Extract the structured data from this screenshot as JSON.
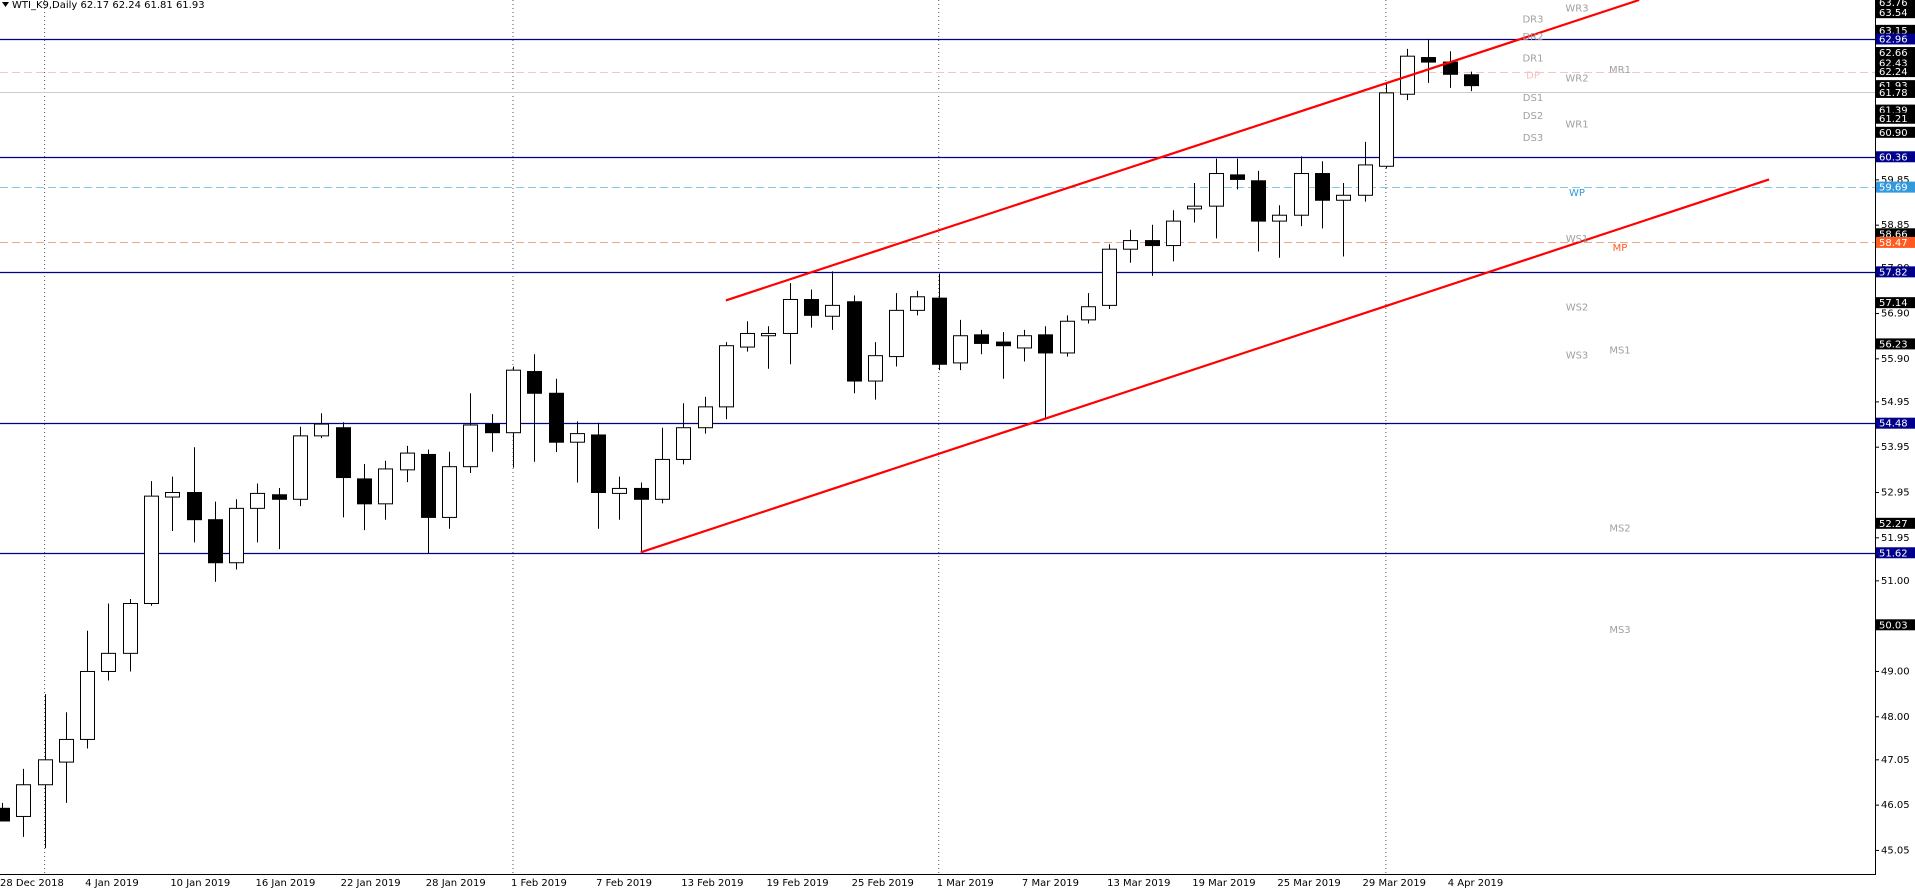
{
  "chart_data": {
    "type": "candlestick",
    "title": "WTI_K9,Daily  62.17 62.24 61.81 61.93",
    "categories": [
      "28 Dec 2018",
      null,
      null,
      null,
      "4 Jan 2019",
      null,
      null,
      null,
      "10 Jan 2019",
      null,
      null,
      null,
      "16 Jan 2019",
      null,
      null,
      null,
      "22 Jan 2019",
      null,
      null,
      null,
      "28 Jan 2019",
      null,
      null,
      null,
      "1 Feb 2019",
      null,
      null,
      null,
      "7 Feb 2019",
      null,
      null,
      null,
      "13 Feb 2019",
      null,
      null,
      null,
      "19 Feb 2019",
      null,
      null,
      null,
      "25 Feb 2019",
      null,
      null,
      null,
      "1 Mar 2019",
      null,
      null,
      null,
      "7 Mar 2019",
      null,
      null,
      null,
      "13 Mar 2019",
      null,
      null,
      null,
      "19 Mar 2019",
      null,
      null,
      null,
      "25 Mar 2019",
      null,
      null,
      null,
      "29 Mar 2019",
      null,
      null,
      null,
      "4 Apr 2019",
      null
    ],
    "open": [
      45.98,
      45.8,
      46.5,
      47.0,
      47.5,
      49.0,
      49.4,
      50.5,
      52.85,
      52.95,
      52.35,
      51.4,
      52.6,
      52.9,
      52.8,
      54.2,
      54.38,
      53.25,
      52.7,
      53.45,
      53.79,
      52.4,
      53.52,
      54.46,
      54.27,
      55.62,
      55.14,
      54.06,
      54.22,
      52.93,
      53.04,
      52.8,
      53.68,
      54.38,
      54.84,
      56.16,
      56.41,
      56.46,
      57.21,
      56.84,
      57.16,
      55.41,
      55.95,
      56.97,
      57.24,
      55.81,
      56.43,
      56.27,
      56.14,
      56.43,
      56.03,
      56.76,
      57.08,
      58.32,
      58.51,
      58.4,
      59.21,
      59.27,
      59.96,
      59.83,
      58.94,
      59.07,
      59.99,
      59.4,
      59.51,
      60.15,
      61.74,
      62.55,
      62.45,
      62.17
    ],
    "high": [
      46.1,
      46.85,
      48.5,
      48.1,
      49.9,
      50.5,
      50.6,
      53.2,
      53.3,
      53.95,
      52.75,
      52.8,
      53.15,
      53.05,
      54.4,
      54.7,
      54.5,
      53.58,
      53.65,
      53.98,
      53.9,
      53.85,
      55.14,
      54.68,
      55.73,
      56.0,
      55.46,
      54.52,
      54.49,
      53.3,
      53.17,
      54.38,
      54.92,
      55.06,
      56.27,
      56.73,
      56.62,
      57.57,
      57.43,
      57.83,
      57.3,
      56.27,
      57.35,
      57.4,
      57.78,
      56.76,
      56.54,
      56.49,
      56.54,
      56.62,
      56.86,
      57.35,
      58.43,
      58.75,
      58.86,
      59.18,
      59.78,
      60.32,
      60.32,
      60.05,
      59.29,
      60.37,
      60.26,
      59.78,
      60.69,
      61.99,
      62.74,
      62.96,
      62.69,
      62.24
    ],
    "low": [
      45.7,
      45.35,
      45.1,
      46.1,
      47.3,
      48.8,
      49.0,
      50.45,
      52.1,
      51.85,
      50.98,
      51.25,
      51.85,
      51.7,
      52.65,
      54.15,
      52.4,
      52.12,
      52.35,
      53.18,
      51.6,
      52.15,
      53.38,
      53.85,
      53.5,
      53.63,
      53.84,
      53.17,
      52.15,
      52.35,
      51.63,
      52.71,
      53.57,
      54.25,
      54.57,
      56.06,
      55.68,
      55.78,
      56.59,
      56.54,
      55.14,
      55.0,
      55.73,
      56.86,
      55.65,
      55.65,
      56.0,
      55.46,
      55.84,
      54.57,
      55.95,
      56.68,
      57.0,
      58.02,
      57.73,
      58.05,
      58.91,
      58.56,
      59.64,
      58.27,
      58.13,
      58.83,
      58.78,
      58.16,
      59.37,
      60.1,
      61.61,
      61.99,
      61.88,
      61.81
    ],
    "close": [
      45.7,
      46.5,
      47.05,
      47.5,
      49.0,
      49.4,
      50.5,
      52.87,
      52.95,
      52.35,
      51.4,
      52.6,
      52.93,
      52.8,
      54.2,
      54.46,
      53.28,
      52.7,
      53.47,
      53.82,
      52.4,
      53.52,
      54.44,
      54.27,
      55.65,
      55.14,
      54.06,
      54.25,
      52.95,
      53.04,
      52.8,
      53.68,
      54.38,
      54.84,
      56.19,
      56.46,
      56.46,
      57.21,
      56.86,
      57.08,
      55.41,
      55.97,
      56.97,
      57.27,
      55.78,
      56.41,
      56.24,
      56.19,
      56.41,
      56.03,
      56.73,
      57.05,
      58.32,
      58.51,
      58.4,
      58.94,
      59.27,
      59.99,
      59.86,
      58.94,
      59.07,
      59.99,
      59.4,
      59.51,
      60.18,
      61.77,
      62.58,
      62.45,
      62.18,
      61.93
    ],
    "colors": {
      "up": "#ffffff",
      "down": "#000000",
      "wick": "#000000",
      "trend": "#ff0000"
    },
    "ylim": [
      44.53,
      63.82
    ],
    "yticks": [
      45.05,
      46.05,
      47.05,
      {
        "value": 48,
        "label": "48.00"
      },
      {
        "value": 49,
        "label": "49.00"
      },
      {
        "value": 51,
        "label": "51.00"
      },
      51.95,
      52.95,
      53.95,
      54.95,
      {
        "value": 55.9,
        "label": "55.90"
      },
      {
        "value": 56.9,
        "label": "56.90"
      },
      {
        "value": 57.9,
        "label": "57.90"
      },
      58.85,
      59.85
    ],
    "levels": [
      {
        "value": 62.96,
        "color": "#00008b",
        "dash": false
      },
      {
        "value": 62.24,
        "color": "#f5c6c6",
        "dash": true
      },
      {
        "value": 61.78,
        "color": "#cccccc",
        "dash": false
      },
      {
        "value": 60.36,
        "color": "#00008b",
        "dash": false
      },
      {
        "value": 59.69,
        "color": "#87c5e8",
        "dash": true
      },
      {
        "value": 58.47,
        "color": "#f4a582",
        "dash": true
      },
      {
        "value": 57.82,
        "color": "#00008b",
        "dash": false
      },
      {
        "value": 54.48,
        "color": "#00008b",
        "dash": false
      },
      {
        "value": 51.62,
        "color": "#00008b",
        "dash": false
      }
    ],
    "price_labels": [
      {
        "value": 63.76,
        "label": "63.76",
        "color": "#000000"
      },
      {
        "value": 63.54,
        "label": "63.54",
        "color": "#000000"
      },
      {
        "value": 63.15,
        "label": "63.15",
        "color": "#000000"
      },
      {
        "value": 62.96,
        "label": "62.96",
        "color": "#00008b"
      },
      {
        "value": 62.66,
        "label": "62.66",
        "color": "#000000"
      },
      {
        "value": 62.43,
        "label": "62.43",
        "color": "#000000"
      },
      {
        "value": 62.24,
        "label": "62.24",
        "color": "#000000"
      },
      {
        "value": 61.93,
        "label": "61.93",
        "color": "#000000"
      },
      {
        "value": 61.78,
        "label": "61.78",
        "color": "#000000"
      },
      {
        "value": 61.39,
        "label": "61.39",
        "color": "#000000"
      },
      {
        "value": 61.21,
        "label": "61.21",
        "color": "#000000"
      },
      {
        "value": 60.9,
        "label": "60.90",
        "color": "#000000"
      },
      {
        "value": 60.36,
        "label": "60.36",
        "color": "#00008b"
      },
      {
        "value": 59.69,
        "label": "59.69",
        "color": "#3399dd"
      },
      {
        "value": 58.66,
        "label": "58.66",
        "color": "#000000"
      },
      {
        "value": 58.47,
        "label": "58.47",
        "color": "#ff5a1f"
      },
      {
        "value": 57.82,
        "label": "57.82",
        "color": "#00008b"
      },
      {
        "value": 57.14,
        "label": "57.14",
        "color": "#000000"
      },
      {
        "value": 56.23,
        "label": "56.23",
        "color": "#000000"
      },
      {
        "value": 54.48,
        "label": "54.48",
        "color": "#00008b"
      },
      {
        "value": 52.27,
        "label": "52.27",
        "color": "#000000"
      },
      {
        "value": 51.62,
        "label": "51.62",
        "color": "#00008b"
      },
      {
        "value": 50.03,
        "label": "50.03",
        "color": "#000000"
      }
    ],
    "trendlines": [
      {
        "x": [
          34,
          76.9
        ],
        "y": [
          57.19,
          63.82
        ]
      },
      {
        "x": [
          30,
          83
        ],
        "y": [
          51.63,
          59.86
        ]
      }
    ],
    "pivots": {
      "daily": [
        {
          "label": "DR3",
          "value": 63.39,
          "color": "#a0a0a0"
        },
        {
          "label": "DR2",
          "value": 63.0,
          "color": "#a0a0a0"
        },
        {
          "label": "DR1",
          "value": 62.53,
          "color": "#a0a0a0"
        },
        {
          "label": "DP",
          "value": 62.15,
          "color": "#f5c0c0"
        },
        {
          "label": "DS1",
          "value": 61.66,
          "color": "#a0a0a0"
        },
        {
          "label": "DS2",
          "value": 61.26,
          "color": "#a0a0a0"
        },
        {
          "label": "DS3",
          "value": 60.77,
          "color": "#a0a0a0"
        }
      ],
      "weekly": [
        {
          "label": "WR3",
          "value": 63.63,
          "color": "#a0a0a0"
        },
        {
          "label": "WR2",
          "value": 62.09,
          "color": "#a0a0a0"
        },
        {
          "label": "WR1",
          "value": 61.07,
          "color": "#a0a0a0"
        },
        {
          "label": "WP",
          "value": 59.56,
          "color": "#3399dd"
        },
        {
          "label": "WS1",
          "value": 58.54,
          "color": "#a0a0a0"
        },
        {
          "label": "WS2",
          "value": 57.03,
          "color": "#a0a0a0"
        },
        {
          "label": "WS3",
          "value": 55.97,
          "color": "#a0a0a0"
        }
      ],
      "monthly": [
        {
          "label": "MR1",
          "value": 62.28,
          "color": "#a0a0a0"
        },
        {
          "label": "MP",
          "value": 58.35,
          "color": "#ff5a1f"
        },
        {
          "label": "MS1",
          "value": 56.08,
          "color": "#a0a0a0"
        },
        {
          "label": "MS2",
          "value": 52.15,
          "color": "#a0a0a0"
        },
        {
          "label": "MS3",
          "value": 49.91,
          "color": "#a0a0a0"
        }
      ]
    }
  }
}
